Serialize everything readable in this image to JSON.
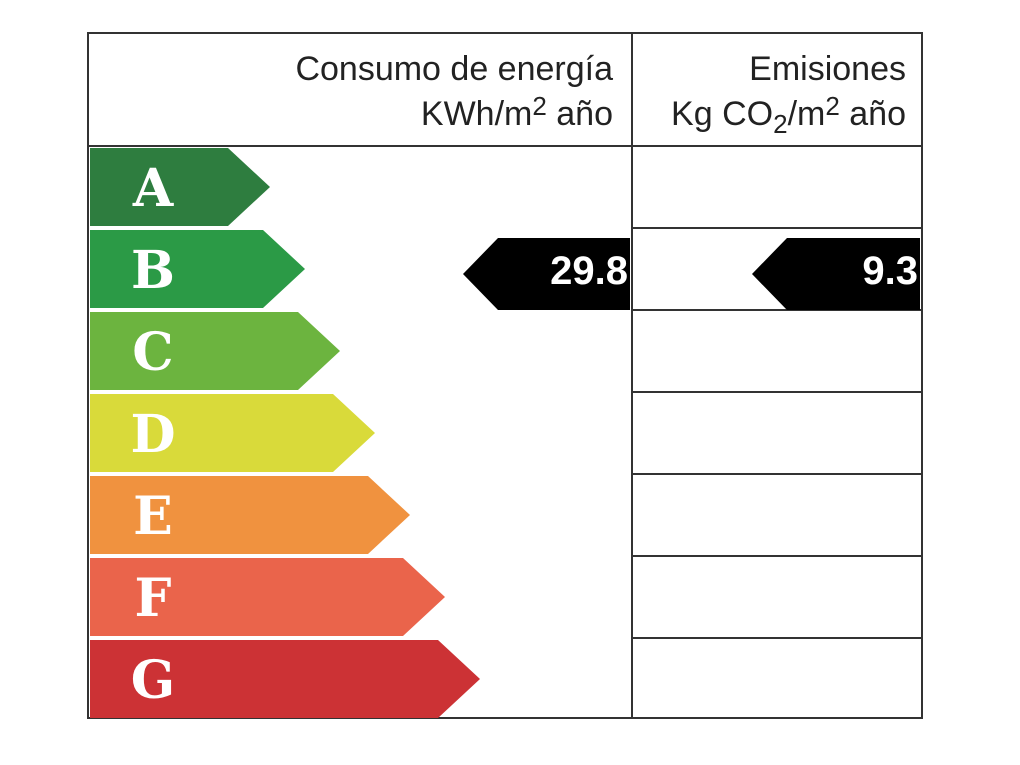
{
  "header": {
    "energy": {
      "title": "Consumo de energía",
      "unit": [
        "KWh/m",
        "2",
        " año"
      ]
    },
    "emissions": {
      "title": "Emisiones",
      "unit": [
        "Kg CO",
        "2",
        "/m",
        "2",
        " año"
      ]
    }
  },
  "ratings": [
    {
      "letter": "A",
      "color": "#2e7d3f"
    },
    {
      "letter": "B",
      "color": "#2b9a46"
    },
    {
      "letter": "C",
      "color": "#6cb43f"
    },
    {
      "letter": "D",
      "color": "#d9da3a"
    },
    {
      "letter": "E",
      "color": "#f0923f"
    },
    {
      "letter": "F",
      "color": "#ea644b"
    },
    {
      "letter": "G",
      "color": "#cc3235"
    }
  ],
  "energy": {
    "class": "B",
    "value": 29.8
  },
  "emissions": {
    "class": "B",
    "value": 9.3
  }
}
